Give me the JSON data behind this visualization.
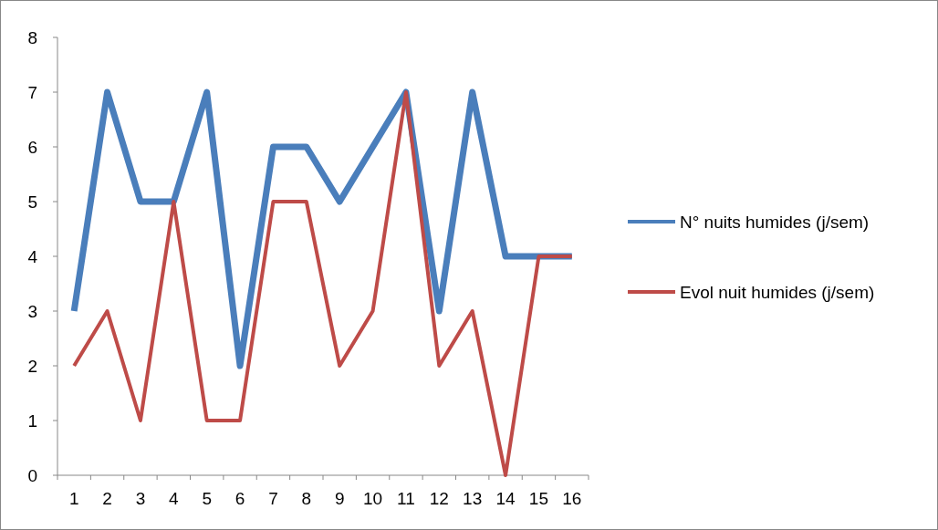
{
  "chart_data": {
    "type": "line",
    "categories": [
      "1",
      "2",
      "3",
      "4",
      "5",
      "6",
      "7",
      "8",
      "9",
      "10",
      "11",
      "12",
      "13",
      "14",
      "15",
      "16"
    ],
    "series": [
      {
        "name": "N° nuits humides (j/sem)",
        "color": "#4a7ebb",
        "values": [
          3,
          7,
          5,
          5,
          7,
          2,
          6,
          6,
          5,
          6,
          7,
          3,
          7,
          4,
          4,
          4
        ]
      },
      {
        "name": "Evol nuit humides (j/sem)",
        "color": "#be4b48",
        "values": [
          2,
          3,
          1,
          5,
          1,
          1,
          5,
          5,
          2,
          3,
          7,
          2,
          3,
          0,
          4,
          4
        ]
      }
    ],
    "ylim": [
      0,
      8
    ],
    "yticks": [
      0,
      1,
      2,
      3,
      4,
      5,
      6,
      7,
      8
    ],
    "grid": false,
    "legend": "right",
    "marker": "none",
    "line_style": "solid"
  }
}
